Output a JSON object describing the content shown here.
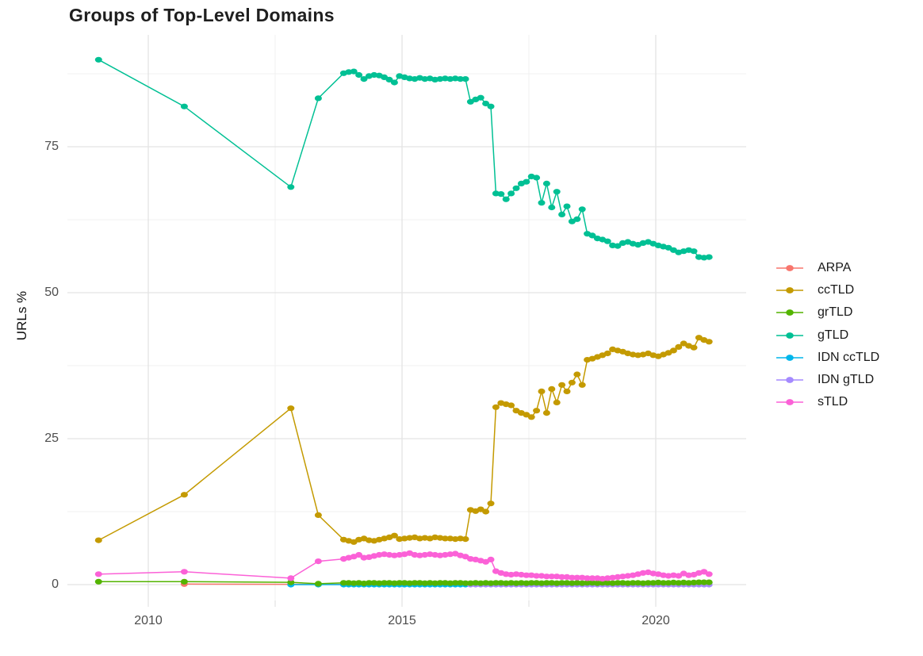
{
  "title": "Groups of Top-Level Domains",
  "axes": {
    "y_label": "URLs %",
    "y_ticks": [
      "0",
      "25",
      "50",
      "75"
    ],
    "x_ticks": [
      "2010",
      "2015",
      "2020"
    ]
  },
  "legend": {
    "items": [
      {
        "label": "ARPA",
        "color": "#F8766D"
      },
      {
        "label": "ccTLD",
        "color": "#C49A00"
      },
      {
        "label": "grTLD",
        "color": "#53B400"
      },
      {
        "label": "gTLD",
        "color": "#00C094"
      },
      {
        "label": "IDN ccTLD",
        "color": "#00B6EB"
      },
      {
        "label": "IDN gTLD",
        "color": "#A58AFF"
      },
      {
        "label": "sTLD",
        "color": "#FB61D7"
      }
    ]
  },
  "chart_data": {
    "type": "line",
    "title": "Groups of Top-Level Domains",
    "xlabel": "",
    "ylabel": "URLs %",
    "x_range": [
      2008.7,
      2021.4
    ],
    "y_range": [
      0,
      92
    ],
    "x_tick_values": [
      2010,
      2015,
      2020
    ],
    "y_tick_values": [
      0,
      25,
      50,
      75
    ],
    "grid": true,
    "legend_position": "right",
    "series": [
      {
        "name": "ARPA",
        "color": "#F8766D",
        "sparse": [
          [
            2010.71,
            0.1
          ],
          [
            2012.81,
            0.05
          ],
          [
            2013.35,
            0.05
          ]
        ],
        "dense": {
          "start": 2013.85,
          "step": 0.1,
          "values": [
            0.05,
            0.05,
            0.05,
            0.05,
            0.05,
            0.05,
            0.05
          ]
        }
      },
      {
        "name": "IDN ccTLD",
        "color": "#00B6EB",
        "sparse": [
          [
            2012.81,
            0.0
          ],
          [
            2013.35,
            0.0
          ]
        ],
        "dense": {
          "start": 2013.85,
          "step": 0.1,
          "values": [
            0,
            0,
            0,
            0,
            0,
            0,
            0,
            0,
            0,
            0,
            0,
            0,
            0,
            0,
            0,
            0,
            0,
            0,
            0,
            0,
            0,
            0,
            0,
            0,
            0
          ]
        }
      },
      {
        "name": "IDN gTLD",
        "color": "#A58AFF",
        "sparse": [],
        "dense": {
          "start": 2016.35,
          "step": 0.1,
          "values": [
            0,
            0,
            0,
            0,
            0,
            0,
            0,
            0,
            0,
            0,
            0,
            0,
            0,
            0,
            0,
            0,
            0,
            0,
            0,
            0,
            0,
            0,
            0,
            0,
            0,
            0,
            0,
            0,
            0,
            0,
            0,
            0,
            0,
            0,
            0,
            0,
            0,
            0,
            0,
            0,
            0,
            0,
            0,
            0,
            0,
            0,
            0,
            0
          ]
        }
      },
      {
        "name": "ccTLD",
        "color": "#C49A00",
        "sparse": [
          [
            2009.02,
            7.6
          ],
          [
            2010.71,
            15.4
          ],
          [
            2012.81,
            30.2
          ],
          [
            2013.35,
            11.9
          ]
        ],
        "dense": {
          "start": 2013.85,
          "step": 0.1,
          "values": [
            7.7,
            7.5,
            7.3,
            7.7,
            7.9,
            7.6,
            7.5,
            7.7,
            7.9,
            8.1,
            8.4,
            7.8,
            7.9,
            8.0,
            8.1,
            7.9,
            8.0,
            7.9,
            8.1,
            8.0,
            7.9,
            7.9,
            7.8,
            7.9,
            7.8,
            12.8,
            12.6,
            12.9,
            12.5,
            13.9,
            30.4,
            31.1,
            30.9,
            30.7,
            29.8,
            29.4,
            29.1,
            28.7,
            29.8,
            33.1,
            29.4,
            33.5,
            31.2,
            34.2,
            33.1,
            34.6,
            36.0,
            34.2,
            38.5,
            38.7,
            39.0,
            39.3,
            39.6,
            40.3,
            40.1,
            39.9,
            39.6,
            39.4,
            39.3,
            39.4,
            39.6,
            39.3,
            39.1,
            39.4,
            39.7,
            40.1,
            40.7,
            41.3,
            40.9,
            40.6,
            42.3,
            41.9,
            41.6
          ]
        }
      },
      {
        "name": "gTLD",
        "color": "#00C094",
        "sparse": [
          [
            2009.02,
            89.9
          ],
          [
            2010.71,
            81.9
          ],
          [
            2012.81,
            68.1
          ],
          [
            2013.35,
            83.3
          ]
        ],
        "dense": {
          "start": 2013.85,
          "step": 0.1,
          "values": [
            87.6,
            87.8,
            87.9,
            87.3,
            86.6,
            87.1,
            87.3,
            87.2,
            86.9,
            86.5,
            86.0,
            87.1,
            86.9,
            86.7,
            86.6,
            86.8,
            86.6,
            86.7,
            86.5,
            86.6,
            86.7,
            86.6,
            86.7,
            86.6,
            86.6,
            82.7,
            83.1,
            83.4,
            82.4,
            81.9,
            67.0,
            66.9,
            66.0,
            67.0,
            67.9,
            68.7,
            69.0,
            69.9,
            69.7,
            65.4,
            68.7,
            64.6,
            67.3,
            63.4,
            64.8,
            62.2,
            62.6,
            64.3,
            60.1,
            59.8,
            59.3,
            59.1,
            58.8,
            58.1,
            58.0,
            58.5,
            58.7,
            58.4,
            58.2,
            58.5,
            58.7,
            58.4,
            58.1,
            57.9,
            57.7,
            57.3,
            56.9,
            57.1,
            57.3,
            57.1,
            56.1,
            56.0,
            56.1
          ]
        }
      },
      {
        "name": "grTLD",
        "color": "#53B400",
        "sparse": [
          [
            2009.02,
            0.5
          ],
          [
            2010.71,
            0.5
          ],
          [
            2012.81,
            0.4
          ],
          [
            2013.35,
            0.15
          ]
        ],
        "dense": {
          "start": 2013.85,
          "step": 0.1,
          "values": [
            0.3,
            0.3,
            0.25,
            0.3,
            0.2,
            0.3,
            0.3,
            0.25,
            0.3,
            0.3,
            0.25,
            0.3,
            0.3,
            0.25,
            0.3,
            0.3,
            0.25,
            0.3,
            0.25,
            0.3,
            0.3,
            0.25,
            0.3,
            0.3,
            0.25,
            0.25,
            0.3,
            0.25,
            0.3,
            0.25,
            0.3,
            0.3,
            0.25,
            0.3,
            0.25,
            0.3,
            0.25,
            0.3,
            0.3,
            0.25,
            0.3,
            0.3,
            0.25,
            0.3,
            0.3,
            0.25,
            0.3,
            0.25,
            0.3,
            0.3,
            0.25,
            0.3,
            0.3,
            0.25,
            0.3,
            0.3,
            0.25,
            0.3,
            0.3,
            0.25,
            0.3,
            0.3,
            0.35,
            0.3,
            0.3,
            0.35,
            0.3,
            0.35,
            0.3,
            0.35,
            0.4,
            0.4,
            0.4
          ]
        }
      },
      {
        "name": "sTLD",
        "color": "#FB61D7",
        "sparse": [
          [
            2009.02,
            1.8
          ],
          [
            2010.71,
            2.2
          ],
          [
            2012.81,
            1.1
          ],
          [
            2013.35,
            4.0
          ]
        ],
        "dense": {
          "start": 2013.85,
          "step": 0.1,
          "values": [
            4.4,
            4.6,
            4.8,
            5.1,
            4.6,
            4.7,
            4.9,
            5.1,
            5.2,
            5.1,
            5.0,
            5.1,
            5.2,
            5.4,
            5.1,
            5.0,
            5.1,
            5.2,
            5.1,
            5.0,
            5.1,
            5.2,
            5.3,
            5.0,
            4.8,
            4.4,
            4.3,
            4.1,
            3.9,
            4.3,
            2.3,
            2.0,
            1.8,
            1.7,
            1.8,
            1.7,
            1.6,
            1.6,
            1.5,
            1.5,
            1.4,
            1.4,
            1.4,
            1.3,
            1.3,
            1.2,
            1.2,
            1.2,
            1.1,
            1.1,
            1.1,
            1.0,
            1.1,
            1.2,
            1.3,
            1.4,
            1.5,
            1.6,
            1.8,
            2.0,
            2.1,
            1.9,
            1.8,
            1.6,
            1.5,
            1.6,
            1.5,
            1.9,
            1.6,
            1.7,
            2.0,
            2.2,
            1.8
          ]
        }
      }
    ]
  }
}
